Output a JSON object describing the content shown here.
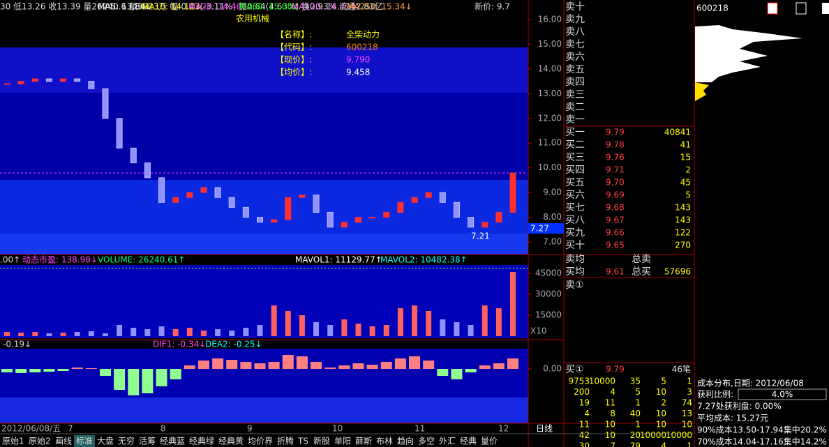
{
  "top_bar": {
    "quote": "30 低13.26 收13.39 量26240.6 额3523万 幅-0.43(-3.11%) 振0.64(4.63%) 换0.93% 流通2.83亿",
    "industry": "农用机械",
    "ma": [
      "MA5: 13.84↓",
      "MA10: 14.12↓",
      "MA20: 14.46↓",
      "MA60: 15.00↓",
      "MA120: 14.47↓",
      "MA250: 15.34↓"
    ],
    "new_price": "新价: 9.7"
  },
  "info_box": [
    {
      "key": "【名称】:",
      "value": "全柴动力"
    },
    {
      "key": "【代码】:",
      "value": "600218"
    },
    {
      "key": "【现价】:",
      "value": "9.790"
    },
    {
      "key": "【均价】:",
      "value": "9.458"
    }
  ],
  "price_axis": {
    "ticks": [
      "16.00",
      "15.00",
      "14.00",
      "13.00",
      "12.00",
      "11.00",
      "10.00",
      "9.00",
      "8.00",
      "7.00"
    ],
    "current": "7.27",
    "low_mark": "7.21"
  },
  "candles": {
    "closes": [
      13.4,
      13.5,
      13.6,
      13.5,
      13.6,
      13.5,
      13.2,
      12.0,
      10.8,
      10.2,
      9.6,
      8.6,
      8.8,
      9.0,
      9.2,
      8.8,
      8.4,
      8.0,
      7.8,
      7.9,
      8.8,
      8.9,
      8.2,
      7.6,
      7.8,
      8.0,
      8.0,
      8.2,
      8.6,
      8.8,
      9.0,
      8.6,
      8.0,
      7.6,
      7.8,
      8.2,
      9.79
    ]
  },
  "volume_panel": {
    "header": [
      ".00↑",
      "动态市盈: 138.98↓",
      "VOLUME: 26240.61↑",
      "MAVOL1: 11129.77↑",
      "MAVOL2: 10482.38↑"
    ],
    "ticks": [
      "45000",
      "30000",
      "15000"
    ],
    "unit": "X10",
    "values": [
      3000,
      2500,
      3000,
      2000,
      2500,
      3000,
      3500,
      2000,
      8000,
      6000,
      5000,
      7000,
      5000,
      6000,
      4000,
      5000,
      4000,
      6000,
      8000,
      22000,
      18000,
      15000,
      10000,
      8000,
      12000,
      9000,
      7000,
      8000,
      20000,
      22000,
      18000,
      12000,
      10000,
      8000,
      22000,
      20000,
      46000
    ]
  },
  "macd_panel": {
    "header": [
      "-0.19↓",
      "DIF1: -0.34↓",
      "DEA2: -0.25↓"
    ],
    "zero": "0.00",
    "values": [
      -0.05,
      -0.06,
      -0.05,
      -0.04,
      -0.03,
      0.02,
      0.01,
      -0.1,
      -0.3,
      -0.38,
      -0.35,
      -0.25,
      -0.15,
      0.05,
      0.12,
      0.15,
      0.13,
      0.1,
      0.08,
      0.1,
      0.2,
      0.18,
      0.1,
      0.02,
      0.05,
      0.08,
      0.06,
      0.1,
      0.15,
      0.18,
      0.12,
      -0.1,
      -0.15,
      -0.05,
      0.05,
      0.08,
      0.15
    ]
  },
  "x_axis": {
    "labels": [
      "2012/06/08/五",
      "7",
      "8",
      "9",
      "10",
      "11",
      "12"
    ],
    "period": "日线"
  },
  "tabs": [
    "原始1",
    "原始2",
    "画线",
    "标准",
    "大盘",
    "无穷",
    "活筹",
    "经典蓝",
    "经典绿",
    "经典黄",
    "均价界",
    "折腾",
    "TS",
    "新股",
    "单阳",
    "薛斯",
    "布林",
    "趋向",
    "多空",
    "外汇",
    "经典",
    "量价"
  ],
  "order_book": {
    "sell": [
      "卖十",
      "卖九",
      "卖八",
      "卖七",
      "卖六",
      "卖五",
      "卖四",
      "卖三",
      "卖二",
      "卖一"
    ],
    "buy": [
      {
        "label": "买一",
        "price": "9.79",
        "volume": "40841"
      },
      {
        "label": "买二",
        "price": "9.78",
        "volume": "41"
      },
      {
        "label": "买三",
        "price": "9.76",
        "volume": "15"
      },
      {
        "label": "买四",
        "price": "9.71",
        "volume": "2"
      },
      {
        "label": "买五",
        "price": "9.70",
        "volume": "45"
      },
      {
        "label": "买六",
        "price": "9.69",
        "volume": "5"
      },
      {
        "label": "买七",
        "price": "9.68",
        "volume": "143"
      },
      {
        "label": "买八",
        "price": "9.67",
        "volume": "143"
      },
      {
        "label": "买九",
        "price": "9.66",
        "volume": "122"
      },
      {
        "label": "买十",
        "price": "9.65",
        "volume": "270"
      }
    ],
    "sell_avg": "卖均",
    "total_sell": "总卖",
    "buy_avg": "买均",
    "buy_avg_price": "9.61",
    "total_buy": "总买",
    "total_buy_volume": "57696",
    "sell_queue": "卖①"
  },
  "queue": {
    "label": "买①",
    "price": "9.79",
    "count": "46笔",
    "rows": [
      [
        "9753",
        "10000",
        "35",
        "5",
        "1"
      ],
      [
        "200",
        "4",
        "5",
        "10",
        "3"
      ],
      [
        "19",
        "11",
        "1",
        "2",
        "74"
      ],
      [
        "4",
        "8",
        "40",
        "10",
        "13"
      ],
      [
        "11",
        "10",
        "1",
        "10",
        "10"
      ],
      [
        "42",
        "10",
        "20",
        "10000",
        "10000"
      ],
      [
        "30",
        "7",
        "79",
        "4",
        "1"
      ]
    ]
  },
  "cost": {
    "code": "600218",
    "title": "成本分布,日期: 2012/06/08",
    "profit_label": "获利比例:",
    "profit_value": "4.0%",
    "lines": [
      "7.27处获利盘: 0.00%",
      "平均成本: 15.27元",
      "90%成本13.50-17.94集中20.2%",
      "70%成本14.04-17.16集中14.2%"
    ]
  }
}
